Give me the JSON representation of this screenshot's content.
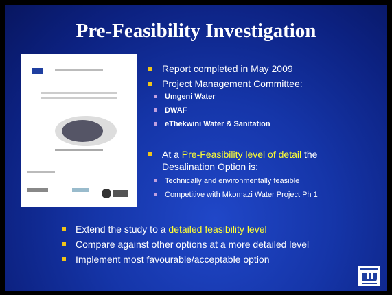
{
  "title": "Pre-Feasibility Investigation",
  "bullets": [
    {
      "segments": [
        {
          "text": "Report completed in May 2009",
          "highlight": false
        }
      ],
      "subitems": []
    },
    {
      "segments": [
        {
          "text": "Project Management Committee:",
          "highlight": false
        }
      ],
      "subitems": [
        "Umgeni Water",
        "DWAF",
        "eThekwini Water & Sanitation"
      ]
    },
    {
      "segments": [
        {
          "text": "At a ",
          "highlight": false
        },
        {
          "text": "Pre-Feasibility level of detail",
          "highlight": true
        },
        {
          "text": " the Desalination Option is:",
          "highlight": false
        }
      ],
      "subitems": [
        "Technically and environmentally feasible",
        "Competitive with Mkomazi Water Project Ph 1"
      ]
    }
  ],
  "bottom_bullets": [
    {
      "segments": [
        {
          "text": "Extend the study to a ",
          "highlight": false
        },
        {
          "text": "detailed feasibility level",
          "highlight": true
        }
      ]
    },
    {
      "segments": [
        {
          "text": "Compare against other options at a more detailed level",
          "highlight": false
        }
      ]
    },
    {
      "segments": [
        {
          "text": "Implement most favourable/acceptable option",
          "highlight": false
        }
      ]
    }
  ]
}
